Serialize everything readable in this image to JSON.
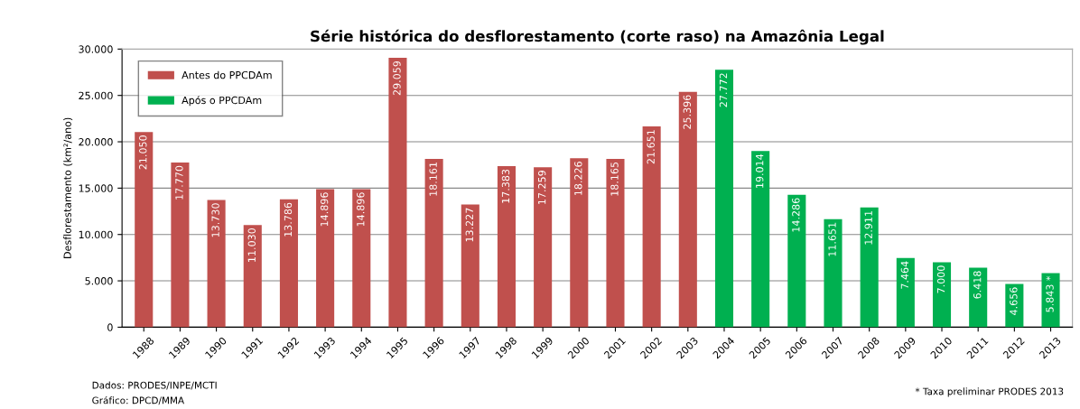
{
  "chart_data": {
    "type": "bar",
    "title": "Série histórica do desflorestamento (corte raso) na Amazônia Legal",
    "ylabel": "Desflorestamento (km²/ano)",
    "categories": [
      "1988",
      "1989",
      "1990",
      "1991",
      "1992",
      "1993",
      "1994",
      "1995",
      "1996",
      "1997",
      "1998",
      "1999",
      "2000",
      "2001",
      "2002",
      "2003",
      "2004",
      "2005",
      "2006",
      "2007",
      "2008",
      "2009",
      "2010",
      "2011",
      "2012",
      "2013"
    ],
    "series": [
      {
        "name": "Antes do PPCDAm",
        "color": "#c0504d",
        "values": [
          21050,
          17770,
          13730,
          11030,
          13786,
          14896,
          14896,
          29059,
          18161,
          13227,
          17383,
          17259,
          18226,
          18165,
          21651,
          25396,
          null,
          null,
          null,
          null,
          null,
          null,
          null,
          null,
          null,
          null
        ],
        "value_labels": [
          "21.050",
          "17.770",
          "13.730",
          "11.030",
          "13.786",
          "14.896",
          "14.896",
          "29.059",
          "18.161",
          "13.227",
          "17.383",
          "17.259",
          "18.226",
          "18.165",
          "21.651",
          "25.396",
          null,
          null,
          null,
          null,
          null,
          null,
          null,
          null,
          null,
          null
        ]
      },
      {
        "name": "Após o PPCDAm",
        "color": "#00b050",
        "values": [
          null,
          null,
          null,
          null,
          null,
          null,
          null,
          null,
          null,
          null,
          null,
          null,
          null,
          null,
          null,
          null,
          27772,
          19014,
          14286,
          11651,
          12911,
          7464,
          7000,
          6418,
          4656,
          5843
        ],
        "value_labels": [
          null,
          null,
          null,
          null,
          null,
          null,
          null,
          null,
          null,
          null,
          null,
          null,
          null,
          null,
          null,
          null,
          "27.772",
          "19.014",
          "14.286",
          "11.651",
          "12.911",
          "7.464",
          "7.000",
          "6.418",
          "4.656",
          "5.843 *"
        ]
      }
    ],
    "ylim": [
      0,
      30000
    ],
    "yticks": [
      0,
      {
        "value": 5000,
        "label": "5.000"
      },
      {
        "value": 10000,
        "label": "10.000"
      },
      {
        "value": 15000,
        "label": "15.000"
      },
      {
        "value": 20000,
        "label": "20.000"
      },
      {
        "value": 25000,
        "label": "25.000"
      },
      {
        "value": 30000,
        "label": "30.000"
      }
    ],
    "grid": "y",
    "legend": "top left",
    "annotations": [
      "Dados: PRODES/INPE/MCTI",
      "Gráfico: DPCD/MMA",
      "* Taxa preliminar PRODES 2013"
    ]
  }
}
